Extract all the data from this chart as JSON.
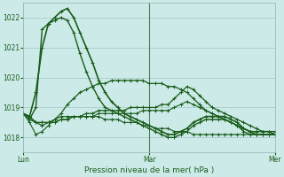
{
  "title": "",
  "xlabel": "Pression niveau de la mer( hPa )",
  "bg_color": "#cceae8",
  "grid_color_h": "#aed4d0",
  "grid_color_v": "#c8b8c8",
  "line_color": "#1a5c1a",
  "ylim": [
    1017.5,
    1022.5
  ],
  "yticks": [
    1018,
    1019,
    1020,
    1021,
    1022
  ],
  "xtick_labels": [
    "Lun",
    "Mar",
    "Mer"
  ],
  "xtick_positions": [
    0.0,
    0.5,
    1.0
  ],
  "series": [
    [
      1018.8,
      1018.7,
      1019.5,
      1021.0,
      1021.8,
      1022.0,
      1022.2,
      1022.3,
      1022.0,
      1021.5,
      1021.0,
      1020.5,
      1019.9,
      1019.5,
      1019.2,
      1019.0,
      1018.8,
      1018.7,
      1018.6,
      1018.5,
      1018.4,
      1018.3,
      1018.2,
      1018.1,
      1018.1,
      1018.2,
      1018.3,
      1018.5,
      1018.6,
      1018.7,
      1018.7,
      1018.7,
      1018.7,
      1018.6,
      1018.5,
      1018.3,
      1018.2,
      1018.1,
      1018.1,
      1018.1,
      1018.1
    ],
    [
      1018.8,
      1018.6,
      1019.0,
      1021.6,
      1021.8,
      1021.9,
      1022.0,
      1021.9,
      1021.5,
      1020.8,
      1020.2,
      1019.7,
      1019.3,
      1019.0,
      1018.9,
      1018.8,
      1018.7,
      1018.6,
      1018.5,
      1018.4,
      1018.3,
      1018.2,
      1018.1,
      1018.0,
      1018.0,
      1018.1,
      1018.2,
      1018.4,
      1018.5,
      1018.6,
      1018.6,
      1018.6,
      1018.6,
      1018.5,
      1018.4,
      1018.2,
      1018.1,
      1018.1,
      1018.1,
      1018.1,
      1018.1
    ],
    [
      1018.8,
      1018.6,
      1018.5,
      1018.4,
      1018.5,
      1018.6,
      1018.8,
      1019.1,
      1019.3,
      1019.5,
      1019.6,
      1019.7,
      1019.8,
      1019.8,
      1019.9,
      1019.9,
      1019.9,
      1019.9,
      1019.9,
      1019.9,
      1019.8,
      1019.8,
      1019.8,
      1019.7,
      1019.7,
      1019.6,
      1019.5,
      1019.3,
      1019.1,
      1018.9,
      1018.8,
      1018.7,
      1018.6,
      1018.5,
      1018.4,
      1018.3,
      1018.2,
      1018.2,
      1018.2,
      1018.2,
      1018.2
    ],
    [
      1018.8,
      1018.7,
      1018.5,
      1018.5,
      1018.5,
      1018.5,
      1018.6,
      1018.6,
      1018.7,
      1018.7,
      1018.8,
      1018.8,
      1018.9,
      1018.9,
      1018.9,
      1018.9,
      1018.9,
      1019.0,
      1019.0,
      1019.0,
      1019.0,
      1019.0,
      1019.1,
      1019.1,
      1019.3,
      1019.5,
      1019.7,
      1019.6,
      1019.4,
      1019.2,
      1019.0,
      1018.9,
      1018.8,
      1018.7,
      1018.6,
      1018.5,
      1018.4,
      1018.3,
      1018.2,
      1018.2,
      1018.1
    ],
    [
      1018.8,
      1018.7,
      1018.5,
      1018.5,
      1018.5,
      1018.5,
      1018.6,
      1018.6,
      1018.7,
      1018.7,
      1018.7,
      1018.7,
      1018.8,
      1018.8,
      1018.8,
      1018.8,
      1018.8,
      1018.8,
      1018.8,
      1018.9,
      1018.9,
      1018.9,
      1018.9,
      1018.9,
      1019.0,
      1019.1,
      1019.2,
      1019.1,
      1019.0,
      1018.9,
      1018.8,
      1018.7,
      1018.6,
      1018.5,
      1018.4,
      1018.3,
      1018.2,
      1018.2,
      1018.2,
      1018.2,
      1018.1
    ],
    [
      1018.8,
      1018.5,
      1018.1,
      1018.2,
      1018.4,
      1018.6,
      1018.7,
      1018.7,
      1018.7,
      1018.7,
      1018.7,
      1018.7,
      1018.7,
      1018.6,
      1018.6,
      1018.6,
      1018.5,
      1018.5,
      1018.5,
      1018.4,
      1018.4,
      1018.3,
      1018.3,
      1018.3,
      1018.2,
      1018.2,
      1018.2,
      1018.1,
      1018.1,
      1018.1,
      1018.1,
      1018.1,
      1018.1,
      1018.1,
      1018.1,
      1018.1,
      1018.1,
      1018.1,
      1018.1,
      1018.1,
      1018.1
    ]
  ],
  "vline_pos": 0.5,
  "marker": "+"
}
